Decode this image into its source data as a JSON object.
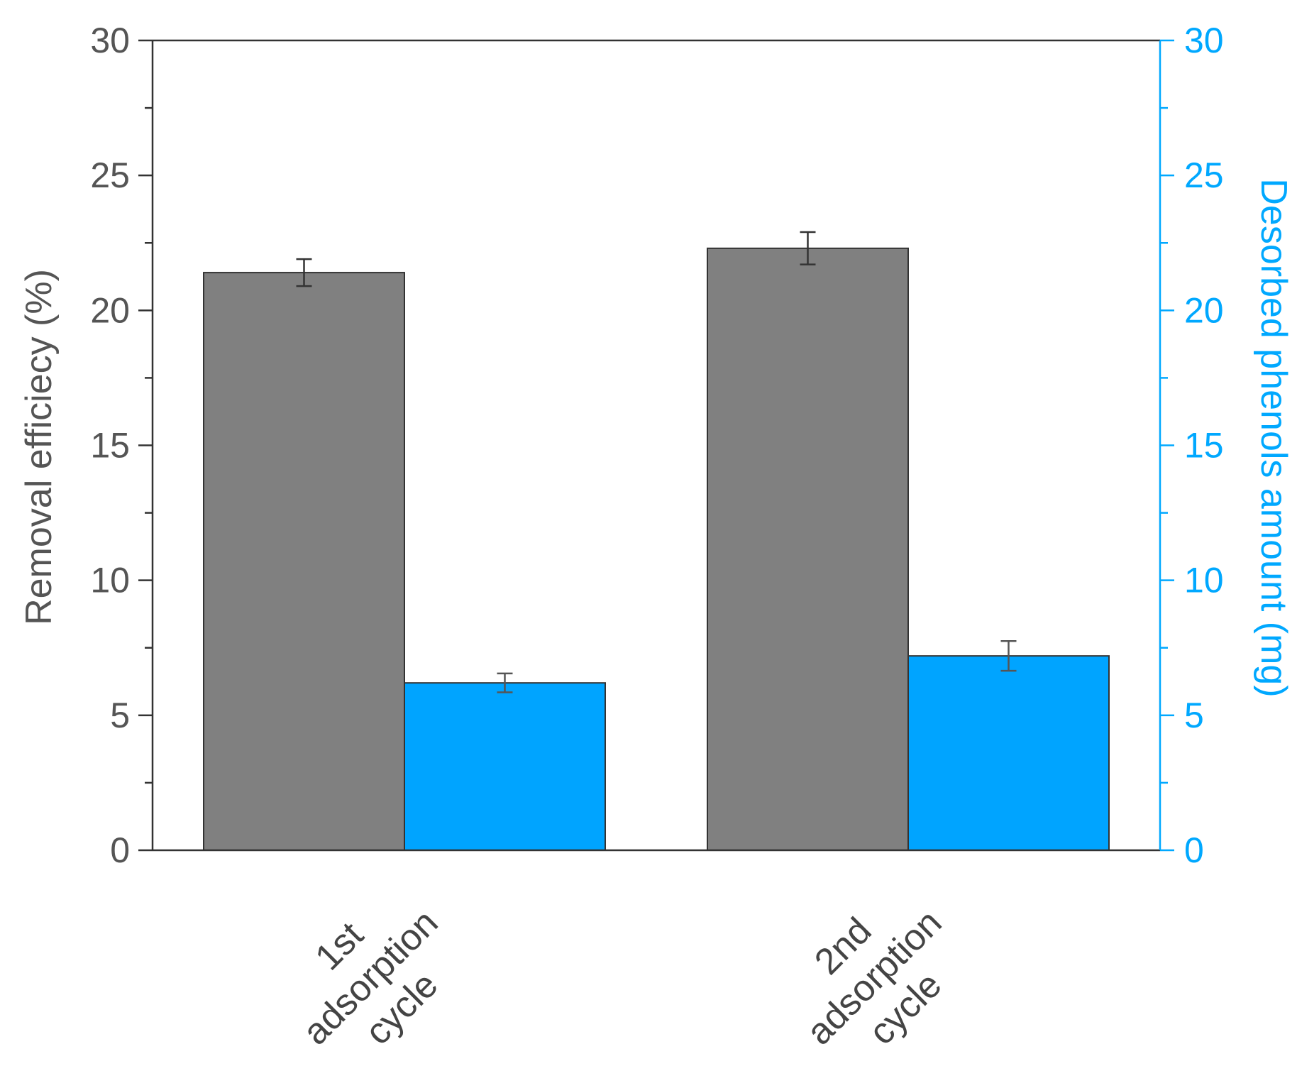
{
  "chart_data": {
    "type": "bar",
    "categories": [
      [
        "1st",
        "adsorption",
        "cycle"
      ],
      [
        "2nd",
        "adsorption",
        "cycle"
      ]
    ],
    "y_left": {
      "label": "Removal efficiecy (%)",
      "range": [
        0,
        30
      ],
      "ticks": [
        "0",
        "5",
        "10",
        "15",
        "20",
        "25",
        "30"
      ],
      "color": "#555555"
    },
    "y_right": {
      "label": "Desorbed phenols amount (mg)",
      "range": [
        0,
        30
      ],
      "ticks": [
        "0",
        "5",
        "10",
        "15",
        "20",
        "25",
        "30"
      ],
      "color": "#00a8ff"
    },
    "series": [
      {
        "axis": "left",
        "color": "#808080",
        "values": [
          21.4,
          22.3
        ],
        "errors": [
          0.5,
          0.6
        ]
      },
      {
        "axis": "right",
        "color": "#00a4ff",
        "values": [
          6.2,
          7.2
        ],
        "errors": [
          0.35,
          0.55
        ]
      }
    ],
    "grid": false,
    "legend": "none"
  }
}
